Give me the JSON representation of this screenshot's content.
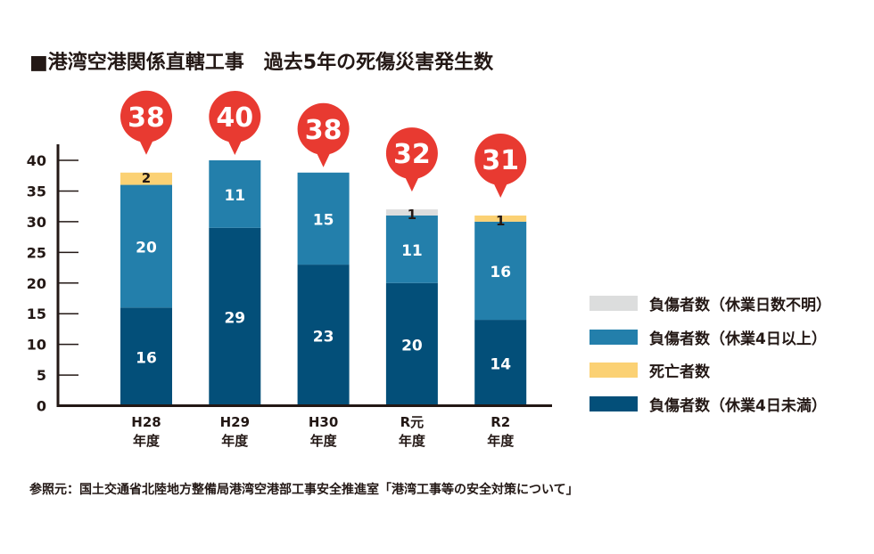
{
  "chart_data": {
    "type": "bar",
    "stacked": true,
    "title": "■港湾空港関係直轄工事　過去5年の死傷災害発生数",
    "source": "参照元：国土交通省北陸地方整備局港湾空港部工事安全推進室「港湾工事等の安全対策について」",
    "categories": [
      {
        "line1": "H28",
        "line2": "年度"
      },
      {
        "line1": "H29",
        "line2": "年度"
      },
      {
        "line1": "H30",
        "line2": "年度"
      },
      {
        "line1": "R元",
        "line2": "年度"
      },
      {
        "line1": "R2",
        "line2": "年度"
      }
    ],
    "series": [
      {
        "name": "負傷者数（休業4日未満）",
        "color": "#034f79",
        "label_color": "#ffffff",
        "values": [
          16,
          29,
          23,
          20,
          14
        ]
      },
      {
        "name": "負傷者数（休業4日以上）",
        "color": "#237fab",
        "label_color": "#ffffff",
        "values": [
          20,
          11,
          15,
          11,
          16
        ]
      },
      {
        "name": "死亡者数",
        "color": "#fbd174",
        "label_color": "#231815",
        "values": [
          2,
          0,
          0,
          0,
          1
        ]
      },
      {
        "name": "負傷者数（休業日数不明）",
        "color": "#dcdddd",
        "label_color": "#231815",
        "values": [
          0,
          0,
          0,
          1,
          0
        ]
      }
    ],
    "totals": [
      38,
      40,
      38,
      32,
      31
    ],
    "total_badge_color": "#e83a31",
    "ylim": [
      0,
      40
    ],
    "yticks": [
      0,
      5,
      10,
      15,
      20,
      25,
      30,
      35,
      40
    ],
    "legend_order": [
      "負傷者数（休業日数不明）",
      "負傷者数（休業4日以上）",
      "死亡者数",
      "負傷者数（休業4日未満）"
    ],
    "legend_position": "right",
    "grid": false,
    "xlabel": "",
    "ylabel": ""
  }
}
